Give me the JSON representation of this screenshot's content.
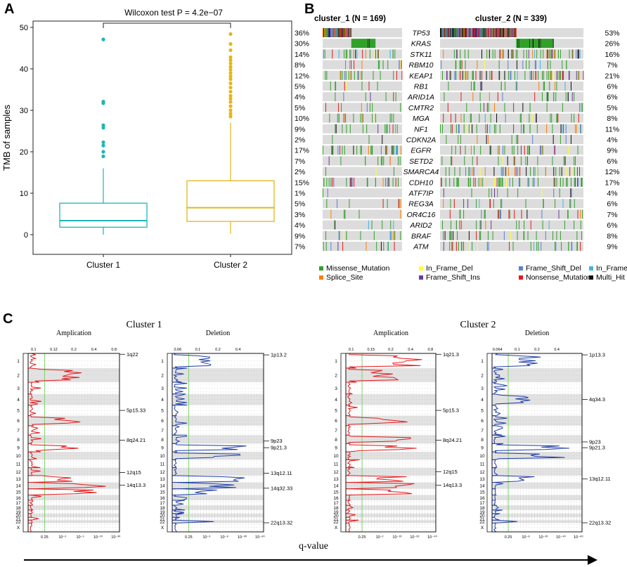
{
  "panels": {
    "a": "A",
    "b": "B",
    "c": "C"
  },
  "chart_data": [
    {
      "type": "box",
      "panel": "A",
      "title": "Wilcoxon test P = 4.2e−07",
      "ylabel": "TMB of samples",
      "ylim": [
        0,
        50
      ],
      "yticks": [
        0,
        10,
        20,
        30,
        40,
        50
      ],
      "colors": [
        "#1fb5b5",
        "#e3b61b"
      ],
      "groups": [
        {
          "name": "Cluster 1",
          "min": 0,
          "q1": 1.8,
          "median": 3.4,
          "q3": 7.6,
          "max": 16,
          "outliers": [
            18.9,
            20.0,
            21.5,
            22.3,
            25.8,
            26.4,
            31.7,
            32.1,
            47.1
          ]
        },
        {
          "name": "Cluster 2",
          "min": 0.2,
          "q1": 3.2,
          "median": 6.5,
          "q3": 13,
          "max": 27,
          "outliers": [
            28.5,
            29.2,
            30.0,
            31.0,
            32.0,
            32.8,
            33.5,
            34.5,
            35.5,
            36.5,
            37.5,
            38.2,
            39.0,
            39.8,
            40.5,
            41.3,
            42.1,
            42.8,
            44.5,
            46.0,
            48.4
          ]
        }
      ]
    },
    {
      "type": "oncoplot",
      "panel": "B",
      "clusters": [
        {
          "title": "cluster_1 (N = 169)",
          "n": 169
        },
        {
          "title": "cluster_2 (N = 339)",
          "n": 339
        }
      ],
      "genes": [
        "TP53",
        "KRAS",
        "STK11",
        "RBM10",
        "KEAP1",
        "RB1",
        "ARID1A",
        "CMTR2",
        "MGA",
        "NF1",
        "CDKN2A",
        "EGFR",
        "SETD2",
        "SMARCA4",
        "CDH10",
        "ATF7IP",
        "REG3A",
        "OR4C16",
        "ARID2",
        "BRAF",
        "ATM"
      ],
      "freq_cluster1": [
        "36%",
        "30%",
        "14%",
        "8%",
        "12%",
        "5%",
        "4%",
        "5%",
        "10%",
        "9%",
        "2%",
        "17%",
        "7%",
        "2%",
        "15%",
        "1%",
        "5%",
        "3%",
        "4%",
        "9%",
        "7%"
      ],
      "freq_cluster2": [
        "53%",
        "26%",
        "16%",
        "7%",
        "21%",
        "6%",
        "6%",
        "5%",
        "8%",
        "11%",
        "4%",
        "9%",
        "6%",
        "12%",
        "17%",
        "4%",
        "6%",
        "7%",
        "6%",
        "8%",
        "9%"
      ],
      "legend": [
        {
          "label": "Missense_Mutation",
          "color": "#33a02c"
        },
        {
          "label": "In_Frame_Del",
          "color": "#ffff33"
        },
        {
          "label": "Frame_Shift_Del",
          "color": "#5b7fd8"
        },
        {
          "label": "In_Frame_Ins",
          "color": "#39b7e8"
        },
        {
          "label": "Splice_Site",
          "color": "#ff7f00"
        },
        {
          "label": "Frame_Shift_Ins",
          "color": "#6a3d9a"
        },
        {
          "label": "Nonsense_Mutation",
          "color": "#e31a1c"
        },
        {
          "label": "Multi_Hit",
          "color": "#111111"
        }
      ]
    },
    {
      "type": "gistic",
      "panel": "C",
      "xaxis_label": "q-value",
      "chromosomes": [
        "1",
        "2",
        "3",
        "4",
        "5",
        "6",
        "7",
        "8",
        "9",
        "10",
        "11",
        "12",
        "13",
        "14",
        "15",
        "16",
        "17",
        "18",
        "19",
        "20",
        "21",
        "22",
        "X"
      ],
      "clusters": [
        {
          "title": "Cluster 1",
          "amplification": {
            "title": "Amplication",
            "top_ticks": [
              "0.1",
              "0.12",
              "0.2",
              "0.4",
              "0.8"
            ],
            "bottom_ticks": [
              "0.25",
              "10⁻²",
              "10⁻⁵",
              "10⁻¹⁰",
              "10⁻³⁰"
            ],
            "labels": [
              "1q22",
              "5p15.33",
              "8q24.21",
              "12q15",
              "14q13.3"
            ]
          },
          "deletion": {
            "title": "Deletion",
            "top_ticks": [
              "0.06",
              "0.1",
              "0.2",
              "0.4"
            ],
            "bottom_ticks": [
              "0.25",
              "10⁻³",
              "10⁻⁸",
              "10⁻³⁰",
              "10⁻⁶⁰"
            ],
            "labels": [
              "1p13.2",
              "9p23",
              "9p21.3",
              "13q12.11",
              "14q32.33",
              "22q13.32"
            ]
          }
        },
        {
          "title": "Cluster 2",
          "amplification": {
            "title": "Amplication",
            "top_ticks": [
              "0.1",
              "0.15",
              "0.2",
              "0.4",
              "0.8"
            ],
            "bottom_ticks": [
              "0.25",
              "10⁻²",
              "10⁻¹⁰",
              "10⁻²⁰",
              "10⁻⁴⁰"
            ],
            "labels": [
              "1q21.3",
              "5p15.3",
              "8q24.21",
              "12q15",
              "14q13.3"
            ]
          },
          "deletion": {
            "title": "Deletion",
            "top_ticks": [
              "0.064",
              "0.1",
              "0.2",
              "0.4"
            ],
            "bottom_ticks": [
              "0.25",
              "10⁻⁸",
              "10⁻²⁰",
              "10⁻⁴⁰",
              "10⁻⁶⁰"
            ],
            "labels": [
              "1p13.3",
              "4q34.3",
              "9p23",
              "9p21.3",
              "13q12.11",
              "22q13.32"
            ]
          }
        }
      ]
    }
  ]
}
